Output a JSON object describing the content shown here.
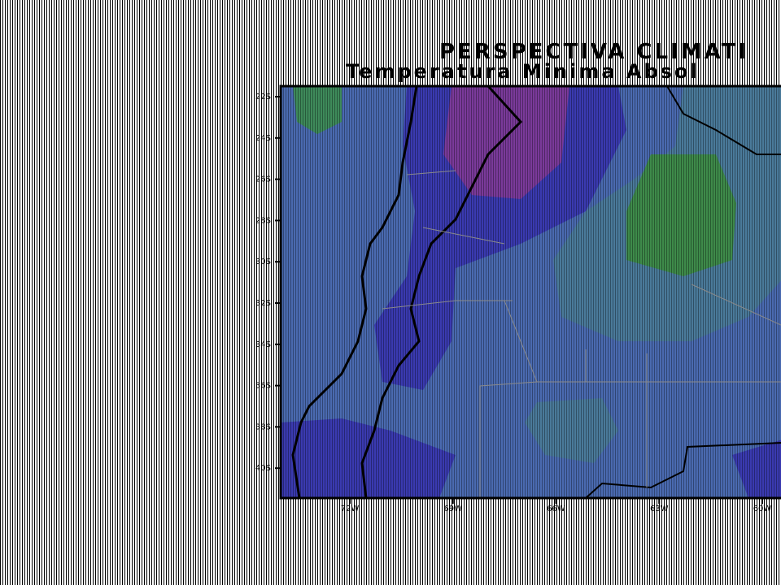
{
  "header": {
    "title": "PERSPECTIVA  CLIMATI",
    "subtitle": "Temperatura  Minima  Absol"
  },
  "map": {
    "lat_labels": [
      "22S",
      "24S",
      "26S",
      "28S",
      "30S",
      "32S",
      "34S",
      "36S",
      "38S",
      "40S"
    ],
    "lon_labels": [
      "72W",
      "69W",
      "66W",
      "63W",
      "60W"
    ]
  }
}
